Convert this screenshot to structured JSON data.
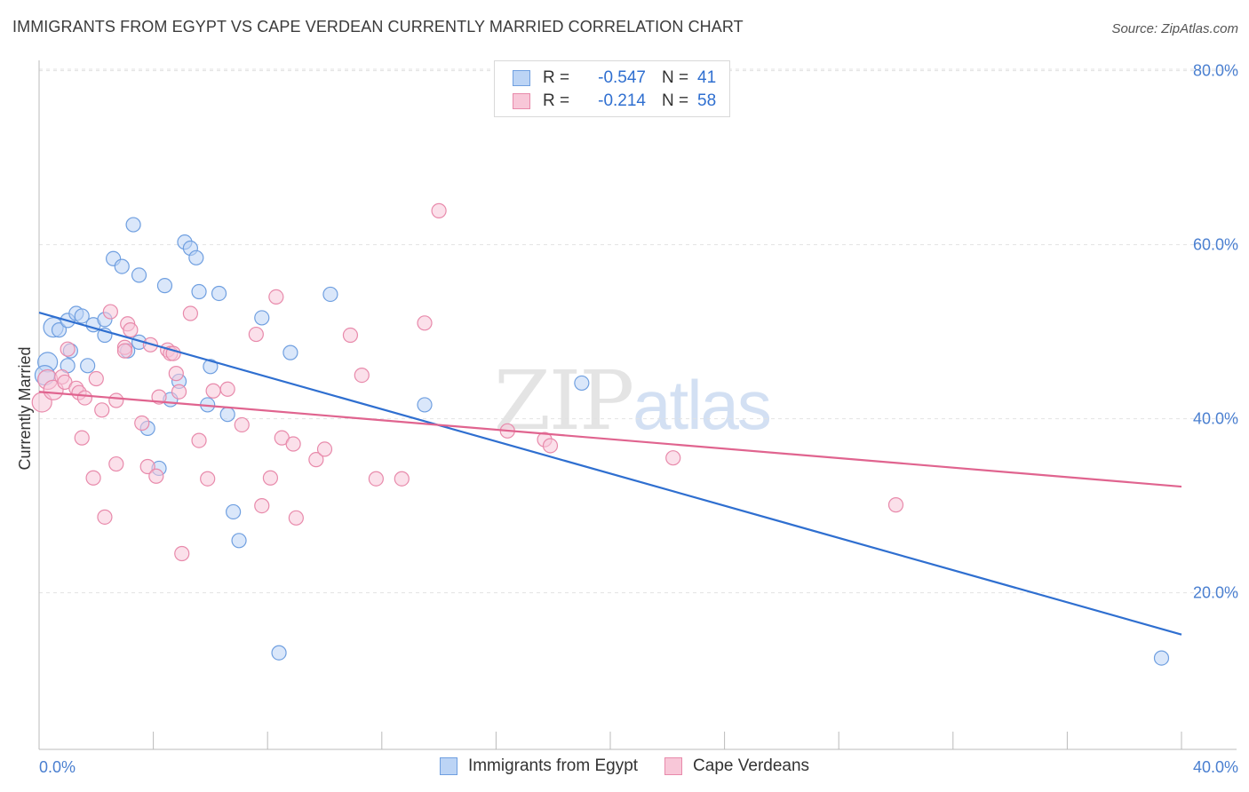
{
  "title": "IMMIGRANTS FROM EGYPT VS CAPE VERDEAN CURRENTLY MARRIED CORRELATION CHART",
  "source": "Source: ZipAtlas.com",
  "watermark": {
    "zip": "ZIP",
    "atlas": "atlas"
  },
  "legend": {
    "rows": [
      {
        "r_label": "R =",
        "r_value": "-0.547",
        "n_label": "N =",
        "n_value": "41"
      },
      {
        "r_label": "R =",
        "r_value": "-0.214",
        "n_label": "N =",
        "n_value": "58"
      }
    ]
  },
  "colors": {
    "egypt_fill": "#bcd4f5",
    "egypt_stroke": "#6f9fe0",
    "egypt_line": "#2f6fd0",
    "cape_fill": "#f8c7d8",
    "cape_stroke": "#e88aab",
    "cape_line": "#e0648f",
    "tick": "#4a7fd0",
    "grid": "#e2e2e2"
  },
  "chart_data": {
    "type": "scatter",
    "xlabel": "",
    "ylabel": "Currently Married",
    "xlim": [
      0,
      40
    ],
    "ylim": [
      2,
      82
    ],
    "x_tick_labels": [
      "0.0%",
      "40.0%"
    ],
    "y_ticks": [
      20,
      40,
      60,
      80
    ],
    "y_tick_labels": [
      "20.0%",
      "40.0%",
      "60.0%",
      "80.0%"
    ],
    "grid": true,
    "legend_position": "top-center",
    "series": [
      {
        "name": "Immigrants from Egypt",
        "r": -0.547,
        "n": 41,
        "trend": {
          "x": [
            0,
            40
          ],
          "y": [
            52.2,
            15.2
          ]
        },
        "points": [
          [
            0.3,
            46.5
          ],
          [
            0.2,
            45.0
          ],
          [
            0.5,
            50.5
          ],
          [
            0.7,
            50.2
          ],
          [
            1.0,
            51.3
          ],
          [
            1.3,
            52.1
          ],
          [
            1.5,
            51.8
          ],
          [
            1.1,
            47.8
          ],
          [
            1.9,
            50.8
          ],
          [
            2.3,
            51.4
          ],
          [
            2.3,
            49.6
          ],
          [
            2.6,
            58.4
          ],
          [
            2.9,
            57.5
          ],
          [
            3.1,
            47.8
          ],
          [
            3.5,
            56.5
          ],
          [
            3.5,
            48.8
          ],
          [
            3.8,
            38.9
          ],
          [
            4.2,
            34.3
          ],
          [
            4.4,
            55.3
          ],
          [
            4.6,
            42.2
          ],
          [
            4.9,
            44.3
          ],
          [
            3.3,
            62.3
          ],
          [
            5.1,
            60.3
          ],
          [
            5.3,
            59.6
          ],
          [
            5.5,
            58.5
          ],
          [
            5.6,
            54.6
          ],
          [
            5.9,
            41.6
          ],
          [
            6.0,
            46.0
          ],
          [
            6.3,
            54.4
          ],
          [
            6.6,
            40.5
          ],
          [
            6.8,
            29.3
          ],
          [
            7.0,
            26.0
          ],
          [
            7.8,
            51.6
          ],
          [
            8.4,
            13.1
          ],
          [
            8.8,
            47.6
          ],
          [
            10.2,
            54.3
          ],
          [
            13.5,
            41.6
          ],
          [
            19.0,
            44.1
          ],
          [
            39.3,
            12.5
          ],
          [
            1.0,
            46.1
          ],
          [
            1.7,
            46.1
          ]
        ]
      },
      {
        "name": "Cape Verdeans",
        "r": -0.214,
        "n": 58,
        "trend": {
          "x": [
            0,
            40
          ],
          "y": [
            43.1,
            32.2
          ]
        },
        "points": [
          [
            0.1,
            41.9
          ],
          [
            0.3,
            44.5
          ],
          [
            0.5,
            43.3
          ],
          [
            0.8,
            44.8
          ],
          [
            0.9,
            44.2
          ],
          [
            1.0,
            48.0
          ],
          [
            1.3,
            43.5
          ],
          [
            1.4,
            43.0
          ],
          [
            1.5,
            37.8
          ],
          [
            1.6,
            42.4
          ],
          [
            1.9,
            33.2
          ],
          [
            2.0,
            44.6
          ],
          [
            2.2,
            41.0
          ],
          [
            2.3,
            28.7
          ],
          [
            2.5,
            52.3
          ],
          [
            2.7,
            42.1
          ],
          [
            2.7,
            34.8
          ],
          [
            3.0,
            48.2
          ],
          [
            3.1,
            50.9
          ],
          [
            3.2,
            50.2
          ],
          [
            3.6,
            39.5
          ],
          [
            3.8,
            34.5
          ],
          [
            3.9,
            48.5
          ],
          [
            4.1,
            33.4
          ],
          [
            4.2,
            42.5
          ],
          [
            4.5,
            47.9
          ],
          [
            4.6,
            47.5
          ],
          [
            4.8,
            45.2
          ],
          [
            4.9,
            43.1
          ],
          [
            5.0,
            24.5
          ],
          [
            5.3,
            52.1
          ],
          [
            5.6,
            37.5
          ],
          [
            5.9,
            33.1
          ],
          [
            6.1,
            43.2
          ],
          [
            6.6,
            43.4
          ],
          [
            7.1,
            39.3
          ],
          [
            7.6,
            49.7
          ],
          [
            7.8,
            30.0
          ],
          [
            8.1,
            33.2
          ],
          [
            8.3,
            54.0
          ],
          [
            8.5,
            37.8
          ],
          [
            8.9,
            37.1
          ],
          [
            9.0,
            28.6
          ],
          [
            9.7,
            35.3
          ],
          [
            10.0,
            36.5
          ],
          [
            10.9,
            49.6
          ],
          [
            11.3,
            45.0
          ],
          [
            11.8,
            33.1
          ],
          [
            12.7,
            33.1
          ],
          [
            13.5,
            51.0
          ],
          [
            14.0,
            63.9
          ],
          [
            16.4,
            38.6
          ],
          [
            17.7,
            37.6
          ],
          [
            17.9,
            36.9
          ],
          [
            22.2,
            35.5
          ],
          [
            30.0,
            30.1
          ],
          [
            4.7,
            47.5
          ],
          [
            3.0,
            47.8
          ]
        ]
      }
    ]
  }
}
